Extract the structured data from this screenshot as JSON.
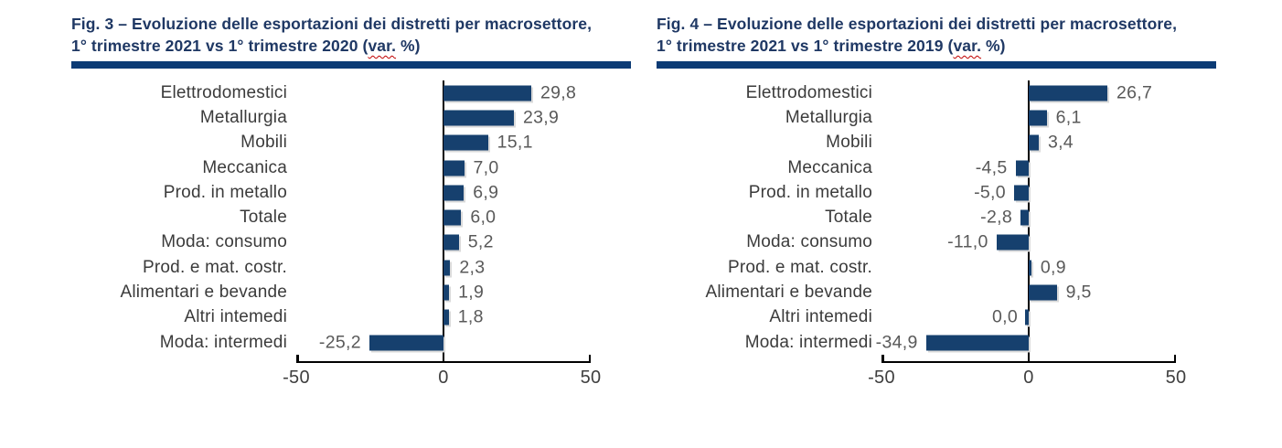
{
  "colors": {
    "bar": "#16406E",
    "title": "#1F3864",
    "rule": "#0C3B75",
    "category_text": "#3B3B3B",
    "value_text": "#595959",
    "axis_text": "#3F3F3F",
    "axis_line": "#000000",
    "squiggle": "#C00000"
  },
  "chart_data": [
    {
      "type": "bar",
      "orientation": "horizontal",
      "title": {
        "line1": "Fig. 3 – Evoluzione delle esportazioni dei distretti per macrosettore,",
        "line2_pre": "1° trimestre 2021 vs 1° trimestre 2020 (",
        "line2_word": "var.",
        "line2_post": " %)"
      },
      "categories": [
        "Elettrodomestici",
        "Metallurgia",
        "Mobili",
        "Meccanica",
        "Prod. in metallo",
        "Totale",
        "Moda: consumo",
        "Prod. e mat. costr.",
        "Alimentari e bevande",
        "Altri intemedi",
        "Moda: intermedi"
      ],
      "values": [
        29.8,
        23.9,
        15.1,
        7.0,
        6.9,
        6.0,
        5.2,
        2.3,
        1.9,
        1.8,
        -25.2
      ],
      "value_labels": [
        "29,8",
        "23,9",
        "15,1",
        "7,0",
        "6,9",
        "6,0",
        "5,2",
        "2,3",
        "1,9",
        "1,8",
        "-25,2"
      ],
      "xlim": [
        -50,
        50
      ],
      "x_tick_labels": [
        "-50",
        "0",
        "50"
      ],
      "grid": "off",
      "legend": "none"
    },
    {
      "type": "bar",
      "orientation": "horizontal",
      "title": {
        "line1": "Fig. 4 – Evoluzione delle esportazioni dei distretti per macrosettore,",
        "line2_pre": "1° trimestre 2021 vs 1° trimestre 2019 (",
        "line2_word": "var.",
        "line2_post": " %)"
      },
      "categories": [
        "Elettrodomestici",
        "Metallurgia",
        "Mobili",
        "Meccanica",
        "Prod. in metallo",
        "Totale",
        "Moda: consumo",
        "Prod. e mat. costr.",
        "Alimentari e bevande",
        "Altri intemedi",
        "Moda: intermedi"
      ],
      "values": [
        26.7,
        6.1,
        3.4,
        -4.5,
        -5.0,
        -2.8,
        -11.0,
        0.9,
        9.5,
        0.0,
        -34.9
      ],
      "value_labels": [
        "26,7",
        "6,1",
        "3,4",
        "-4,5",
        "-5,0",
        "-2,8",
        "-11,0",
        "0,9",
        "9,5",
        "0,0",
        "-34,9"
      ],
      "xlim": [
        -50,
        50
      ],
      "x_tick_labels": [
        "-50",
        "0",
        "50"
      ],
      "grid": "off",
      "legend": "none"
    }
  ]
}
